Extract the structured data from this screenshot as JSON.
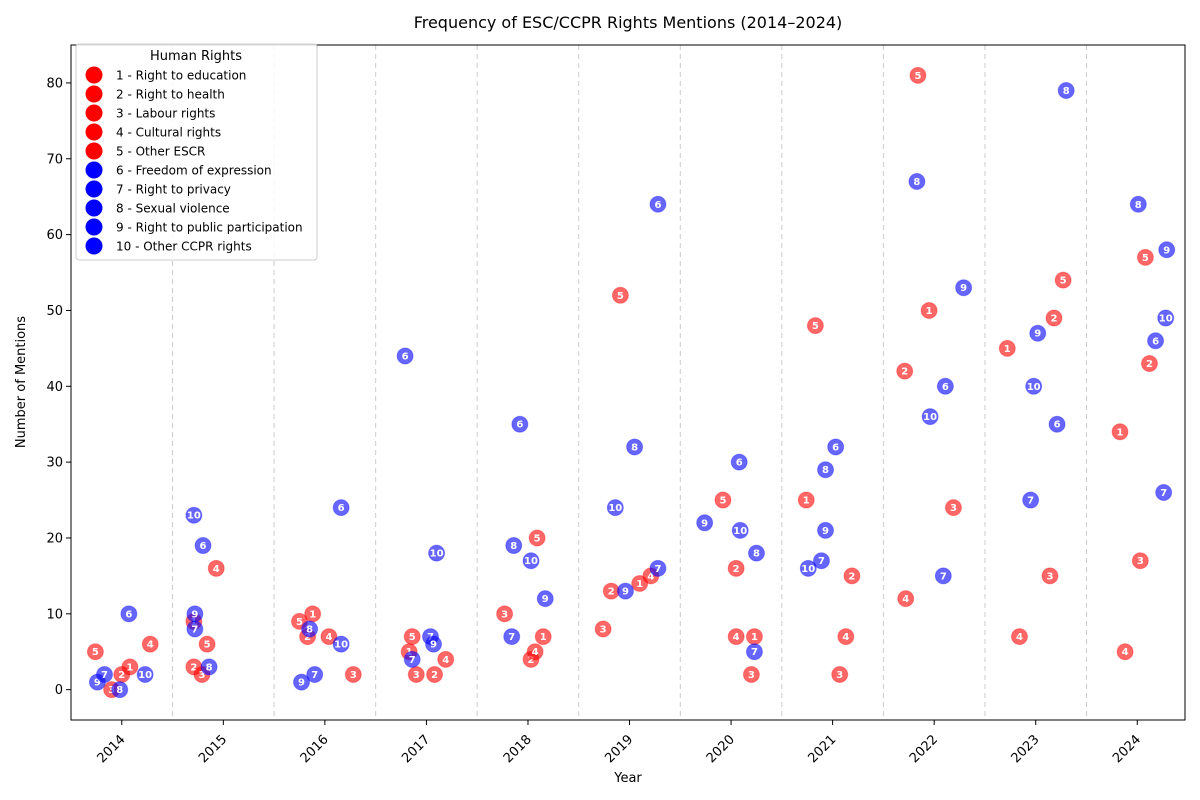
{
  "chart_data": {
    "type": "scatter",
    "title": "Frequency of ESC/CCPR Rights Mentions (2014–2024)",
    "xlabel": "Year",
    "ylabel": "Number of Mentions",
    "xlim": [
      2013.5,
      2024.47
    ],
    "ylim": [
      -4,
      85
    ],
    "x_ticks": [
      2014,
      2015,
      2016,
      2017,
      2018,
      2019,
      2020,
      2021,
      2022,
      2023,
      2024
    ],
    "y_ticks": [
      0,
      10,
      20,
      30,
      40,
      50,
      60,
      70,
      80
    ],
    "year_separators": [
      2014.5,
      2015.5,
      2016.5,
      2017.5,
      2018.5,
      2019.5,
      2020.5,
      2021.5,
      2022.5,
      2023.5
    ],
    "legend": {
      "title": "Human Rights",
      "placement": "top-left",
      "entries": [
        {
          "label": "1 - Right to education",
          "color": "#ff0000"
        },
        {
          "label": "2 - Right to health",
          "color": "#ff0000"
        },
        {
          "label": "3 - Labour rights",
          "color": "#ff0000"
        },
        {
          "label": "4 - Cultural rights",
          "color": "#ff0000"
        },
        {
          "label": "5 - Other ESCR",
          "color": "#ff0000"
        },
        {
          "label": "6 - Freedom of expression",
          "color": "#0000ff"
        },
        {
          "label": "7 - Right to privacy",
          "color": "#0000ff"
        },
        {
          "label": "8 - Sexual violence",
          "color": "#0000ff"
        },
        {
          "label": "9 - Right to public participation",
          "color": "#0000ff"
        },
        {
          "label": "10 -  Other CCPR rights",
          "color": "#0000ff"
        }
      ]
    },
    "colors": {
      "ESCR": "#ff0000",
      "CCPR": "#0000ff"
    },
    "series": [
      {
        "group": "ESCR",
        "points": [
          {
            "x": 2013.74,
            "y": 5,
            "label": "5"
          },
          {
            "x": 2013.9,
            "y": 0,
            "label": "3"
          },
          {
            "x": 2014.0,
            "y": 2,
            "label": "2"
          },
          {
            "x": 2014.08,
            "y": 3,
            "label": "1"
          },
          {
            "x": 2014.28,
            "y": 6,
            "label": "4"
          },
          {
            "x": 2014.71,
            "y": 9,
            "label": "1"
          },
          {
            "x": 2014.71,
            "y": 3,
            "label": "2"
          },
          {
            "x": 2014.79,
            "y": 2,
            "label": "3"
          },
          {
            "x": 2014.84,
            "y": 6,
            "label": "5"
          },
          {
            "x": 2014.93,
            "y": 16,
            "label": "4"
          },
          {
            "x": 2015.75,
            "y": 9,
            "label": "5"
          },
          {
            "x": 2015.83,
            "y": 7,
            "label": "2"
          },
          {
            "x": 2015.88,
            "y": 10,
            "label": "1"
          },
          {
            "x": 2016.04,
            "y": 7,
            "label": "4"
          },
          {
            "x": 2016.28,
            "y": 2,
            "label": "3"
          },
          {
            "x": 2016.83,
            "y": 5,
            "label": "1"
          },
          {
            "x": 2016.86,
            "y": 7,
            "label": "5"
          },
          {
            "x": 2016.9,
            "y": 2,
            "label": "3"
          },
          {
            "x": 2017.08,
            "y": 2,
            "label": "2"
          },
          {
            "x": 2017.19,
            "y": 4,
            "label": "4"
          },
          {
            "x": 2017.77,
            "y": 10,
            "label": "3"
          },
          {
            "x": 2018.03,
            "y": 4,
            "label": "2"
          },
          {
            "x": 2018.07,
            "y": 5,
            "label": "4"
          },
          {
            "x": 2018.09,
            "y": 20,
            "label": "5"
          },
          {
            "x": 2018.15,
            "y": 7,
            "label": "1"
          },
          {
            "x": 2018.74,
            "y": 8,
            "label": "3"
          },
          {
            "x": 2018.82,
            "y": 13,
            "label": "2"
          },
          {
            "x": 2018.91,
            "y": 52,
            "label": "5"
          },
          {
            "x": 2019.1,
            "y": 14,
            "label": "1"
          },
          {
            "x": 2019.21,
            "y": 15,
            "label": "4"
          },
          {
            "x": 2019.92,
            "y": 25,
            "label": "5"
          },
          {
            "x": 2020.05,
            "y": 7,
            "label": "4"
          },
          {
            "x": 2020.05,
            "y": 16,
            "label": "2"
          },
          {
            "x": 2020.2,
            "y": 2,
            "label": "3"
          },
          {
            "x": 2020.23,
            "y": 7,
            "label": "1"
          },
          {
            "x": 2020.74,
            "y": 25,
            "label": "1"
          },
          {
            "x": 2020.83,
            "y": 48,
            "label": "5"
          },
          {
            "x": 2021.07,
            "y": 2,
            "label": "3"
          },
          {
            "x": 2021.13,
            "y": 7,
            "label": "4"
          },
          {
            "x": 2021.19,
            "y": 15,
            "label": "2"
          },
          {
            "x": 2021.71,
            "y": 42,
            "label": "2"
          },
          {
            "x": 2021.72,
            "y": 12,
            "label": "4"
          },
          {
            "x": 2021.84,
            "y": 81,
            "label": "5"
          },
          {
            "x": 2021.95,
            "y": 50,
            "label": "1"
          },
          {
            "x": 2022.19,
            "y": 24,
            "label": "3"
          },
          {
            "x": 2022.72,
            "y": 45,
            "label": "1"
          },
          {
            "x": 2022.84,
            "y": 7,
            "label": "4"
          },
          {
            "x": 2023.14,
            "y": 15,
            "label": "3"
          },
          {
            "x": 2023.18,
            "y": 49,
            "label": "2"
          },
          {
            "x": 2023.27,
            "y": 54,
            "label": "5"
          },
          {
            "x": 2023.83,
            "y": 34,
            "label": "1"
          },
          {
            "x": 2023.88,
            "y": 5,
            "label": "4"
          },
          {
            "x": 2024.03,
            "y": 17,
            "label": "3"
          },
          {
            "x": 2024.08,
            "y": 57,
            "label": "5"
          },
          {
            "x": 2024.12,
            "y": 43,
            "label": "2"
          }
        ]
      },
      {
        "group": "CCPR",
        "points": [
          {
            "x": 2013.76,
            "y": 1,
            "label": "9"
          },
          {
            "x": 2013.83,
            "y": 2,
            "label": "7"
          },
          {
            "x": 2013.98,
            "y": 0,
            "label": "8"
          },
          {
            "x": 2014.07,
            "y": 10,
            "label": "6"
          },
          {
            "x": 2014.23,
            "y": 2,
            "label": "10"
          },
          {
            "x": 2014.71,
            "y": 23,
            "label": "10"
          },
          {
            "x": 2014.72,
            "y": 10,
            "label": "9"
          },
          {
            "x": 2014.72,
            "y": 8,
            "label": "7"
          },
          {
            "x": 2014.8,
            "y": 19,
            "label": "6"
          },
          {
            "x": 2014.86,
            "y": 3,
            "label": "8"
          },
          {
            "x": 2015.77,
            "y": 1,
            "label": "9"
          },
          {
            "x": 2015.85,
            "y": 8,
            "label": "8"
          },
          {
            "x": 2015.9,
            "y": 2,
            "label": "7"
          },
          {
            "x": 2016.16,
            "y": 24,
            "label": "6"
          },
          {
            "x": 2016.16,
            "y": 6,
            "label": "10"
          },
          {
            "x": 2016.79,
            "y": 44,
            "label": "6"
          },
          {
            "x": 2016.86,
            "y": 4,
            "label": "7"
          },
          {
            "x": 2017.04,
            "y": 7,
            "label": "7"
          },
          {
            "x": 2017.07,
            "y": 6,
            "label": "9"
          },
          {
            "x": 2017.1,
            "y": 18,
            "label": "10"
          },
          {
            "x": 2017.84,
            "y": 7,
            "label": "7"
          },
          {
            "x": 2017.86,
            "y": 19,
            "label": "8"
          },
          {
            "x": 2017.92,
            "y": 35,
            "label": "6"
          },
          {
            "x": 2018.03,
            "y": 17,
            "label": "10"
          },
          {
            "x": 2018.17,
            "y": 12,
            "label": "9"
          },
          {
            "x": 2018.86,
            "y": 24,
            "label": "10"
          },
          {
            "x": 2018.96,
            "y": 13,
            "label": "9"
          },
          {
            "x": 2019.05,
            "y": 32,
            "label": "8"
          },
          {
            "x": 2019.28,
            "y": 64,
            "label": "6"
          },
          {
            "x": 2019.28,
            "y": 16,
            "label": "7"
          },
          {
            "x": 2019.74,
            "y": 22,
            "label": "9"
          },
          {
            "x": 2020.08,
            "y": 30,
            "label": "6"
          },
          {
            "x": 2020.09,
            "y": 21,
            "label": "10"
          },
          {
            "x": 2020.23,
            "y": 5,
            "label": "7"
          },
          {
            "x": 2020.25,
            "y": 18,
            "label": "8"
          },
          {
            "x": 2020.76,
            "y": 16,
            "label": "10"
          },
          {
            "x": 2020.89,
            "y": 17,
            "label": "7"
          },
          {
            "x": 2020.93,
            "y": 29,
            "label": "8"
          },
          {
            "x": 2020.93,
            "y": 21,
            "label": "9"
          },
          {
            "x": 2021.03,
            "y": 32,
            "label": "6"
          },
          {
            "x": 2021.83,
            "y": 67,
            "label": "8"
          },
          {
            "x": 2021.96,
            "y": 36,
            "label": "10"
          },
          {
            "x": 2022.09,
            "y": 15,
            "label": "7"
          },
          {
            "x": 2022.11,
            "y": 40,
            "label": "6"
          },
          {
            "x": 2022.29,
            "y": 53,
            "label": "9"
          },
          {
            "x": 2022.95,
            "y": 25,
            "label": "7"
          },
          {
            "x": 2022.98,
            "y": 40,
            "label": "10"
          },
          {
            "x": 2023.02,
            "y": 47,
            "label": "9"
          },
          {
            "x": 2023.21,
            "y": 35,
            "label": "6"
          },
          {
            "x": 2023.3,
            "y": 79,
            "label": "8"
          },
          {
            "x": 2024.01,
            "y": 64,
            "label": "8"
          },
          {
            "x": 2024.18,
            "y": 46,
            "label": "6"
          },
          {
            "x": 2024.26,
            "y": 26,
            "label": "7"
          },
          {
            "x": 2024.28,
            "y": 49,
            "label": "10"
          },
          {
            "x": 2024.29,
            "y": 58,
            "label": "9"
          }
        ]
      }
    ],
    "grid": false,
    "point_opacity": 0.6
  }
}
